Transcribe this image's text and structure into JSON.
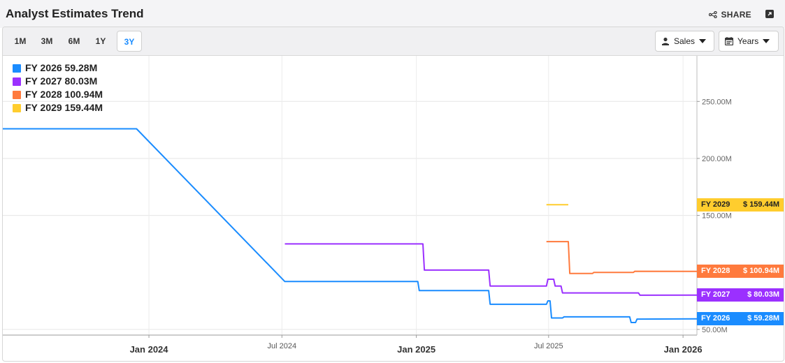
{
  "header": {
    "title": "Analyst Estimates Trend",
    "share_label": "SHARE"
  },
  "toolbar": {
    "ranges": [
      "1M",
      "3M",
      "6M",
      "1Y",
      "3Y"
    ],
    "active_range": "3Y",
    "metric_label": "Sales",
    "period_label": "Years"
  },
  "colors": {
    "fy2026": "#1a8cff",
    "fy2027": "#9b30ff",
    "fy2028": "#ff7a3d",
    "fy2029": "#ffcd2e"
  },
  "chart_data": {
    "type": "line",
    "xlabel": "",
    "ylabel": "",
    "ylim": [
      45,
      290
    ],
    "x_range": [
      "2023-06-15",
      "2026-01-20"
    ],
    "x_ticks": [
      {
        "date": "2024-01-01",
        "label": "Jan 2024",
        "bold": true
      },
      {
        "date": "2024-07-01",
        "label": "Jul 2024",
        "bold": false
      },
      {
        "date": "2025-01-01",
        "label": "Jan 2025",
        "bold": true
      },
      {
        "date": "2025-07-01",
        "label": "Jul 2025",
        "bold": false
      },
      {
        "date": "2026-01-01",
        "label": "Jan 2026",
        "bold": true
      }
    ],
    "y_ticks": [
      {
        "value": 250,
        "label": "250.00M"
      },
      {
        "value": 200,
        "label": "200.00M"
      },
      {
        "value": 150,
        "label": "150.00M"
      },
      {
        "value": 50,
        "label": "50.00M"
      }
    ],
    "grid": true,
    "legend_position": "top-left",
    "series": [
      {
        "name": "FY 2026",
        "legend": "FY 2026 59.28M",
        "tag_label": "FY 2026",
        "tag_value": "$ 59.28M",
        "color_key": "fy2026",
        "step": false,
        "points": [
          [
            "2023-06-15",
            226
          ],
          [
            "2023-12-15",
            226
          ],
          [
            "2024-07-05",
            92
          ],
          [
            "2025-01-03",
            92
          ],
          [
            "2025-01-05",
            84
          ],
          [
            "2025-04-10",
            84
          ],
          [
            "2025-04-12",
            72
          ],
          [
            "2025-06-28",
            72
          ],
          [
            "2025-06-30",
            75
          ],
          [
            "2025-07-03",
            75
          ],
          [
            "2025-07-05",
            60
          ],
          [
            "2025-07-20",
            60
          ],
          [
            "2025-07-22",
            61
          ],
          [
            "2025-10-20",
            61
          ],
          [
            "2025-10-22",
            56
          ],
          [
            "2025-10-28",
            56
          ],
          [
            "2025-10-30",
            59
          ],
          [
            "2026-01-20",
            59.28
          ]
        ]
      },
      {
        "name": "FY 2027",
        "legend": "FY 2027 80.03M",
        "tag_label": "FY 2027",
        "tag_value": "$ 80.03M",
        "color_key": "fy2027",
        "step": false,
        "points": [
          [
            "2024-07-05",
            125
          ],
          [
            "2025-01-10",
            125
          ],
          [
            "2025-01-12",
            102
          ],
          [
            "2025-04-10",
            102
          ],
          [
            "2025-04-12",
            88
          ],
          [
            "2025-06-28",
            88
          ],
          [
            "2025-06-30",
            94
          ],
          [
            "2025-07-08",
            94
          ],
          [
            "2025-07-10",
            88
          ],
          [
            "2025-07-18",
            88
          ],
          [
            "2025-07-20",
            82
          ],
          [
            "2025-11-01",
            82
          ],
          [
            "2025-11-03",
            80
          ],
          [
            "2026-01-20",
            80.03
          ]
        ]
      },
      {
        "name": "FY 2028",
        "legend": "FY 2028 100.94M",
        "tag_label": "FY 2028",
        "tag_value": "$ 100.94M",
        "color_key": "fy2028",
        "step": false,
        "points": [
          [
            "2025-06-28",
            127
          ],
          [
            "2025-07-28",
            127
          ],
          [
            "2025-07-30",
            99
          ],
          [
            "2025-08-30",
            99
          ],
          [
            "2025-09-01",
            100
          ],
          [
            "2025-10-25",
            100
          ],
          [
            "2025-10-27",
            101
          ],
          [
            "2026-01-20",
            100.94
          ]
        ]
      },
      {
        "name": "FY 2029",
        "legend": "FY 2029 159.44M",
        "tag_label": "FY 2029",
        "tag_value": "$ 159.44M",
        "color_key": "fy2029",
        "step": false,
        "points": [
          [
            "2025-06-28",
            159.44
          ],
          [
            "2025-07-28",
            159.44
          ]
        ]
      }
    ]
  }
}
